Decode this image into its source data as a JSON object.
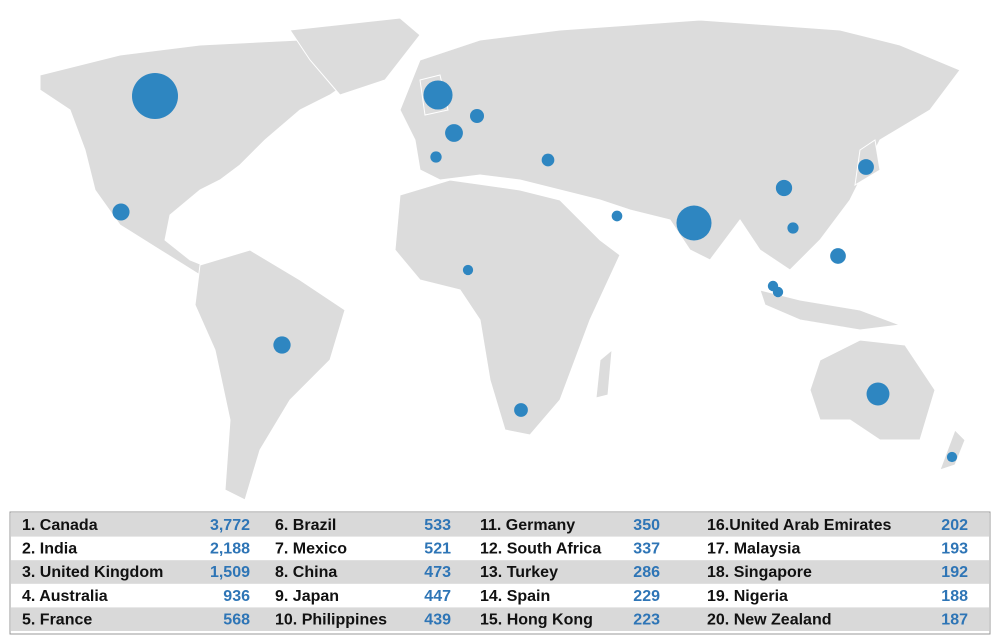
{
  "map": {
    "labels": [
      "1. Canada",
      "2. India",
      "3. United Kingdom",
      "4. Australia",
      "5. France",
      "6. Brazil",
      "7. Mexico",
      "8. China",
      "9. Japan",
      "10. Philippines",
      "11. Germany",
      "12. South Africa",
      "13. Turkey",
      "14. Spain",
      "15. Hong Kong",
      "16.United Arab Emirates",
      "17. Malaysia",
      "18. Singapore",
      "19. Nigeria",
      "20. New Zealand"
    ],
    "values": [
      3772,
      2188,
      1509,
      936,
      568,
      533,
      521,
      473,
      447,
      439,
      350,
      337,
      286,
      229,
      223,
      202,
      193,
      192,
      188,
      187
    ],
    "value_labels": [
      "3,772",
      "2,188",
      "1,509",
      "936",
      "568",
      "533",
      "521",
      "473",
      "447",
      "439",
      "350",
      "337",
      "286",
      "229",
      "223",
      "202",
      "193",
      "192",
      "188",
      "187"
    ],
    "color": "#2e86c1"
  }
}
